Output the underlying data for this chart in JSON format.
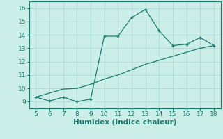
{
  "xlabel": "Humidex (Indice chaleur)",
  "ylabel": "",
  "bg_color": "#cceee8",
  "line_color": "#1a7a6e",
  "grid_color": "#b0ddd6",
  "xlim": [
    4.5,
    18.5
  ],
  "ylim": [
    8.5,
    16.5
  ],
  "xticks": [
    5,
    6,
    7,
    8,
    9,
    10,
    11,
    12,
    13,
    14,
    15,
    16,
    17,
    18
  ],
  "yticks": [
    9,
    10,
    11,
    12,
    13,
    14,
    15,
    16
  ],
  "series1_x": [
    5,
    6,
    7,
    8,
    9,
    10,
    11,
    12,
    13,
    14,
    15,
    16,
    17,
    18
  ],
  "series1_y": [
    9.35,
    9.05,
    9.35,
    9.0,
    9.2,
    13.9,
    13.9,
    15.3,
    15.9,
    14.3,
    13.2,
    13.3,
    13.8,
    13.2
  ],
  "series2_x": [
    5,
    6,
    7,
    8,
    9,
    10,
    11,
    12,
    13,
    14,
    15,
    16,
    17,
    18
  ],
  "series2_y": [
    9.35,
    9.65,
    9.95,
    10.0,
    10.3,
    10.7,
    11.0,
    11.4,
    11.8,
    12.1,
    12.4,
    12.7,
    13.0,
    13.2
  ],
  "marker": "P",
  "marker_size": 3,
  "linewidth": 0.9,
  "xlabel_fontsize": 7.5,
  "tick_fontsize": 6.5
}
